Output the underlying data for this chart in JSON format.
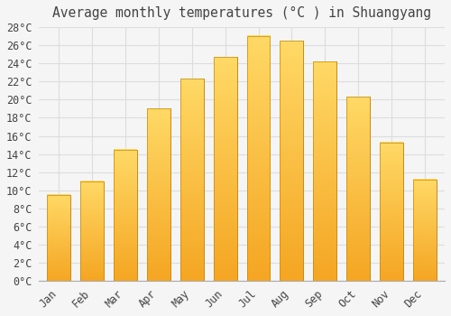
{
  "title": "Average monthly temperatures (°C ) in Shuangyang",
  "months": [
    "Jan",
    "Feb",
    "Mar",
    "Apr",
    "May",
    "Jun",
    "Jul",
    "Aug",
    "Sep",
    "Oct",
    "Nov",
    "Dec"
  ],
  "values": [
    9.5,
    11.0,
    14.5,
    19.0,
    22.3,
    24.7,
    27.0,
    26.5,
    24.2,
    20.3,
    15.3,
    11.2
  ],
  "bar_color_bottom": "#F5A623",
  "bar_color_top": "#FFD966",
  "bar_edge_color": "#C8870A",
  "background_color": "#F5F5F5",
  "plot_bg_color": "#F5F5F5",
  "grid_color": "#DDDDDD",
  "text_color": "#444444",
  "ylim": [
    0,
    28
  ],
  "ytick_step": 2,
  "title_fontsize": 10.5,
  "tick_fontsize": 8.5,
  "bar_width": 0.7
}
